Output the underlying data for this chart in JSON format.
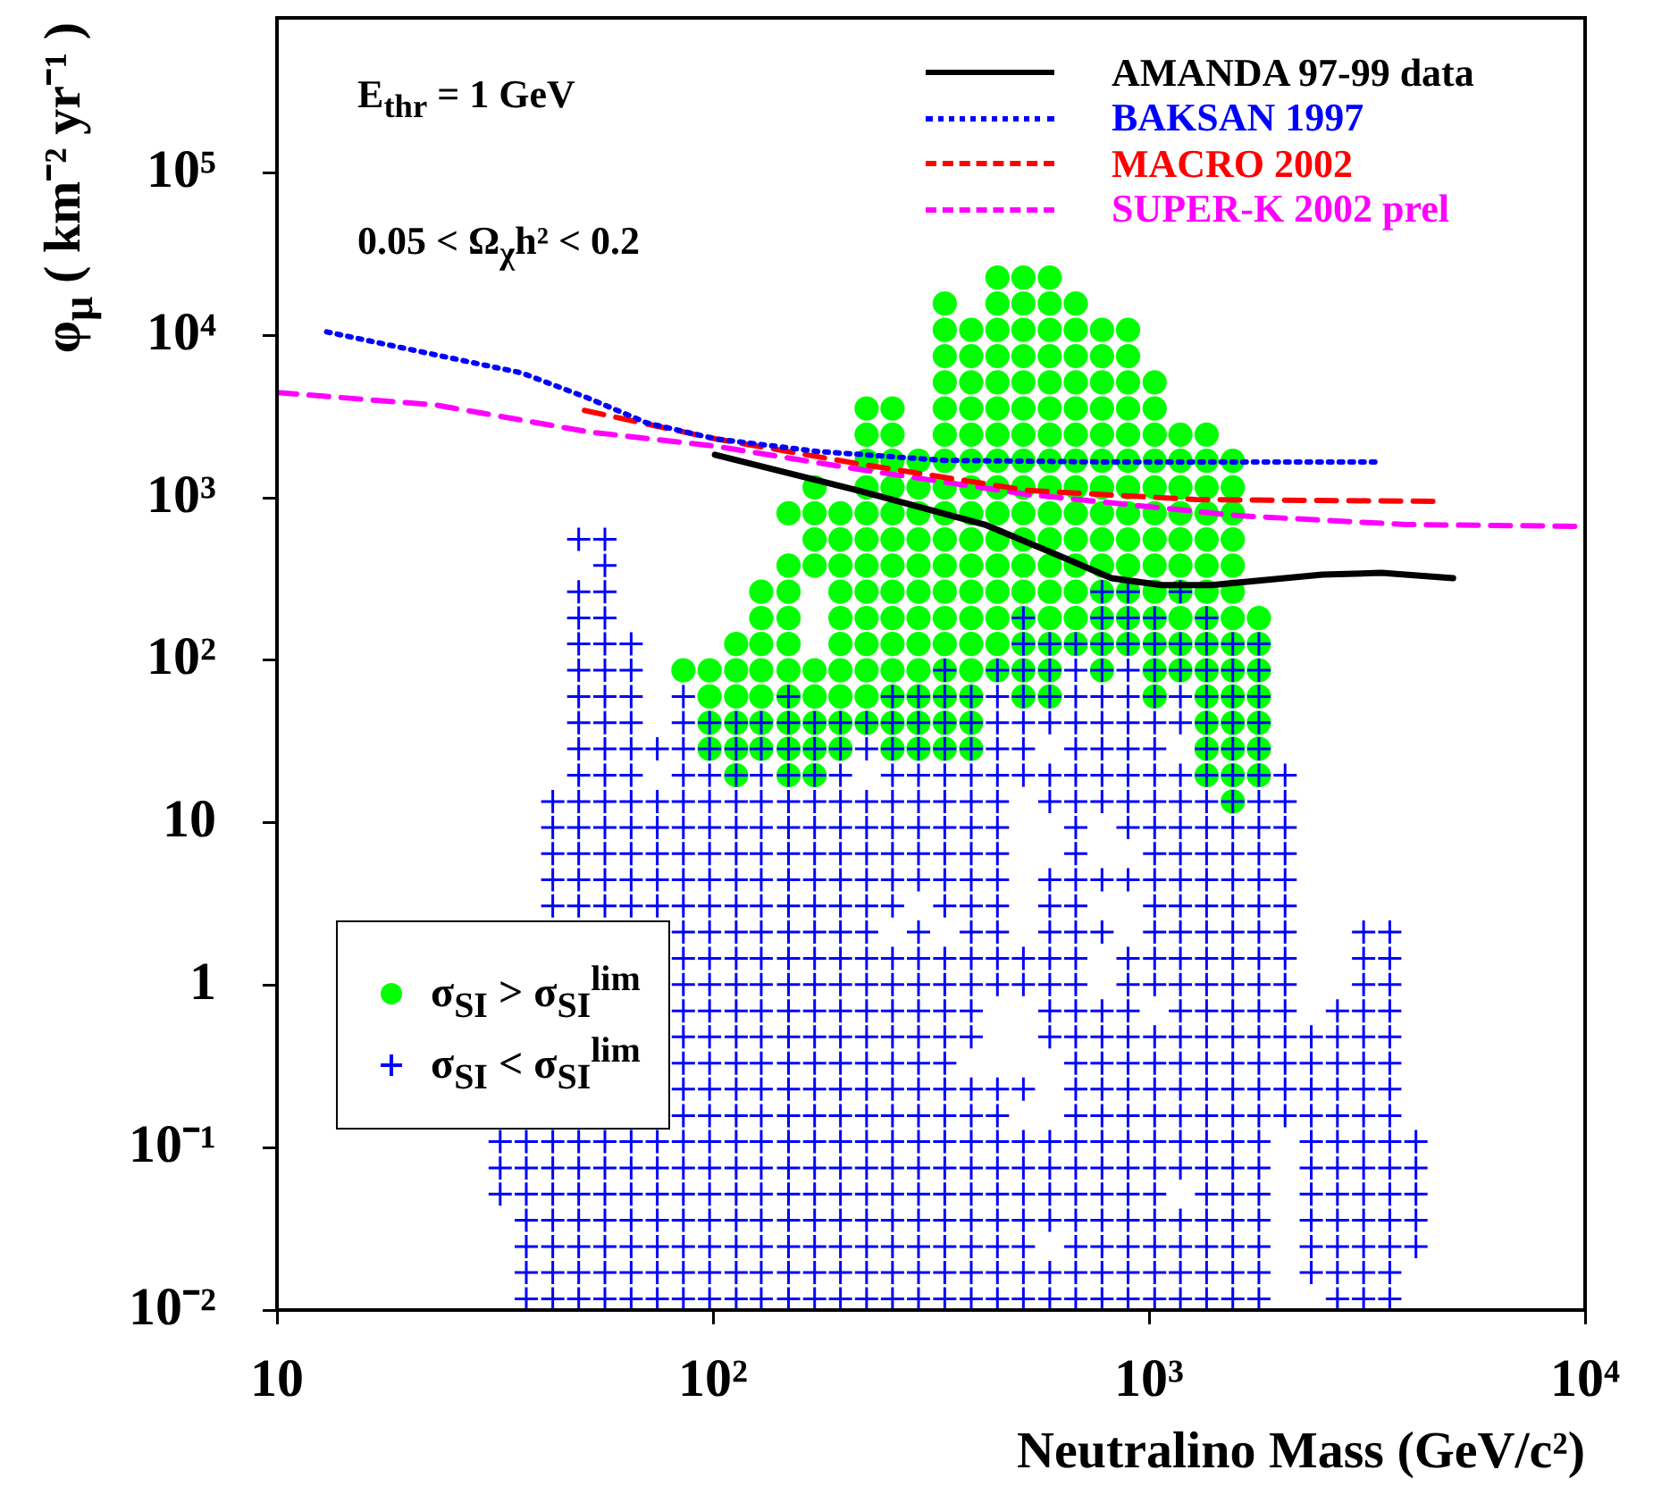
{
  "chart_data": {
    "type": "scatter",
    "xlabel": "Neutralino Mass (GeV/c²)",
    "ylabel": "φ$_{μ}$ ( km⁻² yr⁻¹ )",
    "annotations": [
      "E$_{thr}$ = 1 GeV",
      "0.05 < Ω$_{χ}$h² < 0.2"
    ],
    "log": "xy",
    "legend": "top right",
    "xlim": [
      10,
      10000
    ],
    "xticks": [
      10,
      {
        "value": 100,
        "label": "10²"
      },
      {
        "value": 1000,
        "label": "10³"
      },
      {
        "value": 10000,
        "label": "10⁴"
      }
    ],
    "ylim": [
      0.01,
      900000
    ],
    "yticks": [
      {
        "value": 0.01,
        "label": "10⁻²"
      },
      {
        "value": 0.1,
        "label": "10⁻¹"
      },
      1,
      10,
      {
        "value": 100,
        "label": "10²"
      },
      {
        "value": 1000,
        "label": "10³"
      },
      {
        "value": 10000,
        "label": "10⁴"
      },
      {
        "value": 100000,
        "label": "10⁵"
      }
    ],
    "series": [
      {
        "name": "AMANDA 97-99 data",
        "type": "line",
        "color": "#000000",
        "marker": "none",
        "line_style": "solid",
        "x": [
          101,
          215,
          420,
          630,
          820,
          1070,
          1390,
          2500,
          3410,
          4980
        ],
        "values": [
          1840,
          1110,
          684,
          434,
          320,
          290,
          290,
          337,
          345,
          320
        ]
      },
      {
        "name": "BAKSAN 1997",
        "type": "line",
        "color": "#0000ff",
        "marker": "none",
        "line_style": "dotted",
        "x": [
          13.0,
          23.2,
          36.4,
          51.6,
          70.5,
          101,
          173,
          338,
          820,
          3410
        ],
        "values": [
          10500,
          7570,
          5870,
          4120,
          2890,
          2310,
          1930,
          1700,
          1660,
          1660
        ]
      },
      {
        "name": "MACRO 2002",
        "type": "line",
        "color": "#ff0000",
        "marker": "none",
        "line_style": "dashed",
        "x": [
          50.7,
          101,
          215,
          526,
          1280,
          4740
        ],
        "values": [
          3450,
          2310,
          1620,
          1110,
          975,
          951
        ]
      },
      {
        "name": "SUPER-K 2002 prel",
        "type": "line",
        "color": "#ff00ff",
        "marker": "none",
        "line_style": "dashed",
        "x": [
          10,
          23.2,
          51.6,
          101,
          215,
          526,
          1600,
          3890,
          10000
        ],
        "values": [
          4450,
          3720,
          2550,
          2080,
          1500,
          1050,
          776,
          684,
          667
        ]
      },
      {
        "name": "σ$_{SI}$ > σ$_{SI}$$^{lim}$",
        "type": "scatter",
        "color": "#00ff00",
        "marker": "circle",
        "x": [
          449,
          515,
          592,
          340,
          449,
          515,
          592,
          679,
          340,
          391,
          449,
          515,
          592,
          679,
          780,
          895,
          340,
          391,
          449,
          515,
          592,
          679,
          780,
          895,
          340,
          391,
          449,
          515,
          592,
          679,
          780,
          895,
          1030,
          225,
          258,
          340,
          391,
          449,
          515,
          592,
          679,
          780,
          895,
          1030,
          225,
          258,
          340,
          391,
          449,
          515,
          592,
          679,
          780,
          895,
          1030,
          1180,
          1355,
          225,
          258,
          296,
          340,
          391,
          449,
          515,
          592,
          679,
          780,
          895,
          1030,
          1180,
          1355,
          1556,
          171,
          225,
          258,
          296,
          340,
          391,
          449,
          515,
          592,
          679,
          780,
          895,
          1030,
          1180,
          1355,
          1556,
          149,
          171,
          196,
          225,
          258,
          296,
          340,
          391,
          449,
          515,
          592,
          679,
          780,
          895,
          1030,
          1180,
          1355,
          1556,
          171,
          196,
          225,
          258,
          296,
          340,
          391,
          449,
          515,
          592,
          679,
          780,
          895,
          1030,
          1180,
          1355,
          1556,
          149,
          171,
          196,
          225,
          258,
          296,
          340,
          391,
          449,
          515,
          592,
          679,
          780,
          895,
          1030,
          1180,
          1355,
          1556,
          129,
          149,
          196,
          225,
          258,
          296,
          340,
          391,
          449,
          515,
          592,
          679,
          780,
          895,
          1030,
          1180,
          1355,
          1556,
          129,
          149,
          196,
          225,
          258,
          296,
          340,
          391,
          449,
          515,
          592,
          679,
          780,
          895,
          1030,
          1180,
          1355,
          1556,
          1786,
          113,
          129,
          149,
          196,
          225,
          258,
          296,
          340,
          391,
          449,
          515,
          592,
          679,
          780,
          895,
          1030,
          1180,
          1355,
          1556,
          1786,
          85.5,
          98.2,
          113,
          129,
          149,
          171,
          196,
          225,
          258,
          296,
          340,
          391,
          449,
          515,
          592,
          780,
          1030,
          1180,
          1355,
          1556,
          1786,
          98.2,
          113,
          129,
          149,
          171,
          196,
          225,
          258,
          296,
          340,
          391,
          515,
          592,
          1030,
          1355,
          1556,
          1786,
          98.2,
          113,
          129,
          149,
          171,
          196,
          225,
          258,
          296,
          340,
          391,
          1355,
          1556,
          1786,
          98.2,
          113,
          129,
          149,
          171,
          196,
          258,
          296,
          340,
          391,
          1355,
          1556,
          1786,
          113,
          149,
          171,
          1355,
          1556,
          1786,
          1556
        ],
        "values": [
          22700,
          22700,
          22700,
          15700,
          15700,
          15700,
          15700,
          15700,
          10800,
          10800,
          10800,
          10800,
          10800,
          10800,
          10800,
          10800,
          7450,
          7450,
          7450,
          7450,
          7450,
          7450,
          7450,
          7450,
          5140,
          5140,
          5140,
          5140,
          5140,
          5140,
          5140,
          5140,
          5140,
          3550,
          3550,
          3550,
          3550,
          3550,
          3550,
          3550,
          3550,
          3550,
          3550,
          3550,
          2450,
          2450,
          2450,
          2450,
          2450,
          2450,
          2450,
          2450,
          2450,
          2450,
          2450,
          2450,
          2450,
          1690,
          1690,
          1690,
          1690,
          1690,
          1690,
          1690,
          1690,
          1690,
          1690,
          1690,
          1690,
          1690,
          1690,
          1690,
          1160,
          1160,
          1160,
          1160,
          1160,
          1160,
          1160,
          1160,
          1160,
          1160,
          1160,
          1160,
          1160,
          1160,
          1160,
          1160,
          804,
          804,
          804,
          804,
          804,
          804,
          804,
          804,
          804,
          804,
          804,
          804,
          804,
          804,
          804,
          804,
          804,
          804,
          555,
          555,
          555,
          555,
          555,
          555,
          555,
          555,
          555,
          555,
          555,
          555,
          555,
          555,
          555,
          555,
          555,
          383,
          383,
          383,
          383,
          383,
          383,
          383,
          383,
          383,
          383,
          383,
          383,
          383,
          383,
          383,
          383,
          383,
          383,
          264,
          264,
          264,
          264,
          264,
          264,
          264,
          264,
          264,
          264,
          264,
          264,
          264,
          264,
          264,
          264,
          264,
          264,
          182,
          182,
          182,
          182,
          182,
          182,
          182,
          182,
          182,
          182,
          182,
          182,
          182,
          182,
          182,
          182,
          182,
          182,
          182,
          126,
          126,
          126,
          126,
          126,
          126,
          126,
          126,
          126,
          126,
          126,
          126,
          126,
          126,
          126,
          126,
          126,
          126,
          126,
          126,
          86.7,
          86.7,
          86.7,
          86.7,
          86.7,
          86.7,
          86.7,
          86.7,
          86.7,
          86.7,
          86.7,
          86.7,
          86.7,
          86.7,
          86.7,
          86.7,
          86.7,
          86.7,
          86.7,
          86.7,
          86.7,
          59.8,
          59.8,
          59.8,
          59.8,
          59.8,
          59.8,
          59.8,
          59.8,
          59.8,
          59.8,
          59.8,
          59.8,
          59.8,
          59.8,
          59.8,
          59.8,
          59.8,
          41.2,
          41.2,
          41.2,
          41.2,
          41.2,
          41.2,
          41.2,
          41.2,
          41.2,
          41.2,
          41.2,
          41.2,
          41.2,
          41.2,
          28.5,
          28.5,
          28.5,
          28.5,
          28.5,
          28.5,
          28.5,
          28.5,
          28.5,
          28.5,
          28.5,
          28.5,
          28.5,
          19.6,
          19.6,
          19.6,
          19.6,
          19.6,
          19.6,
          13.5
        ]
      },
      {
        "name": "σ$_{SI}$ < σ$_{SI}$$^{lim}$",
        "type": "scatter",
        "color": "#0000ff",
        "marker": "cross",
        "x": [
          37.3,
          42.9,
          49.2,
          56.5,
          64.9,
          74.5,
          85.5,
          98.2,
          113,
          129,
          149,
          171,
          196,
          225,
          258,
          296,
          340,
          391,
          449,
          515,
          592,
          679,
          780,
          895,
          1030,
          1180,
          1355,
          1556,
          1786,
          2704,
          3105,
          3565,
          37.3,
          42.9,
          49.2,
          56.5,
          64.9,
          74.5,
          85.5,
          98.2,
          113,
          129,
          149,
          171,
          196,
          225,
          258,
          296,
          340,
          391,
          449,
          515,
          592,
          679,
          780,
          895,
          1030,
          1180,
          1355,
          1556,
          1786,
          2355,
          2704,
          3105,
          3565,
          37.3,
          42.9,
          49.2,
          56.5,
          64.9,
          74.5,
          85.5,
          98.2,
          113,
          129,
          149,
          171,
          196,
          225,
          258,
          296,
          340,
          391,
          449,
          515,
          679,
          780,
          895,
          1030,
          1180,
          1355,
          1556,
          1786,
          2355,
          2704,
          3105,
          3565,
          4093,
          37.3,
          42.9,
          49.2,
          56.5,
          64.9,
          74.5,
          85.5,
          98.2,
          113,
          129,
          149,
          171,
          196,
          225,
          258,
          296,
          340,
          391,
          449,
          515,
          592,
          679,
          780,
          895,
          1030,
          1180,
          1355,
          1556,
          1786,
          2355,
          2704,
          3105,
          3565,
          4093,
          32.5,
          37.3,
          42.9,
          49.2,
          56.5,
          64.9,
          74.5,
          85.5,
          98.2,
          113,
          129,
          149,
          171,
          196,
          225,
          258,
          296,
          340,
          391,
          449,
          515,
          592,
          679,
          780,
          895,
          1030,
          1355,
          1556,
          1786,
          2355,
          2704,
          3105,
          3565,
          4093,
          32.5,
          37.3,
          42.9,
          49.2,
          56.5,
          64.9,
          74.5,
          85.5,
          98.2,
          113,
          129,
          149,
          171,
          196,
          225,
          258,
          296,
          340,
          391,
          449,
          515,
          592,
          679,
          780,
          895,
          1030,
          1180,
          1355,
          1556,
          1786,
          2355,
          2704,
          3105,
          3565,
          4093,
          32.5,
          37.3,
          42.9,
          49.2,
          56.5,
          64.9,
          74.5,
          85.5,
          98.2,
          113,
          129,
          149,
          171,
          196,
          225,
          258,
          296,
          340,
          391,
          449,
          515,
          592,
          679,
          780,
          895,
          1030,
          1180,
          1355,
          1556,
          1786,
          2355,
          2704,
          3105,
          3565,
          4093,
          85.5,
          98.2,
          113,
          129,
          149,
          171,
          196,
          225,
          258,
          296,
          340,
          391,
          449,
          679,
          780,
          895,
          1030,
          1180,
          1355,
          1556,
          1786,
          2051,
          2355,
          2704,
          3105,
          3565,
          85.5,
          98.2,
          113,
          129,
          149,
          171,
          196,
          225,
          258,
          296,
          340,
          391,
          449,
          515,
          679,
          780,
          895,
          1030,
          1180,
          1355,
          1556,
          1786,
          2051,
          2355,
          2704,
          3105,
          3565,
          85.5,
          98.2,
          113,
          129,
          149,
          171,
          196,
          225,
          258,
          296,
          340,
          679,
          780,
          895,
          1030,
          1180,
          1355,
          1556,
          1786,
          2051,
          2355,
          2704,
          3105,
          3565,
          85.5,
          98.2,
          113,
          129,
          149,
          171,
          196,
          225,
          258,
          296,
          340,
          391,
          592,
          679,
          780,
          895,
          1030,
          1180,
          1355,
          1556,
          1786,
          2051,
          2355,
          2704,
          3105,
          3565,
          85.5,
          98.2,
          113,
          129,
          149,
          171,
          196,
          225,
          258,
          296,
          340,
          391,
          592,
          679,
          780,
          895,
          1180,
          1355,
          1556,
          1786,
          2051,
          2704,
          3105,
          3565,
          85.5,
          98.2,
          113,
          129,
          149,
          171,
          196,
          225,
          258,
          296,
          340,
          391,
          449,
          515,
          592,
          679,
          895,
          1030,
          1180,
          1355,
          1556,
          1786,
          2051,
          3105,
          3565,
          85.5,
          98.2,
          113,
          129,
          149,
          171,
          196,
          225,
          258,
          296,
          340,
          391,
          449,
          515,
          592,
          679,
          895,
          1030,
          1180,
          1355,
          1556,
          1786,
          2051,
          3105,
          3565,
          85.5,
          98.2,
          113,
          129,
          149,
          171,
          196,
          225,
          296,
          391,
          449,
          592,
          679,
          780,
          1030,
          1180,
          1355,
          1556,
          1786,
          2051,
          3105,
          3565,
          42.9,
          49.2,
          56.5,
          64.9,
          74.5,
          85.5,
          98.2,
          113,
          129,
          149,
          171,
          196,
          225,
          258,
          340,
          391,
          449,
          592,
          679,
          1030,
          1180,
          1355,
          1556,
          1786,
          2051,
          42.9,
          49.2,
          56.5,
          64.9,
          74.5,
          85.5,
          98.2,
          113,
          129,
          149,
          171,
          196,
          225,
          258,
          296,
          340,
          391,
          449,
          592,
          679,
          780,
          895,
          1030,
          1180,
          1355,
          1556,
          1786,
          2051,
          42.9,
          49.2,
          56.5,
          64.9,
          74.5,
          85.5,
          98.2,
          113,
          129,
          149,
          171,
          196,
          225,
          258,
          296,
          340,
          391,
          449,
          679,
          1030,
          1180,
          1355,
          1556,
          1786,
          2051,
          42.9,
          49.2,
          56.5,
          64.9,
          74.5,
          85.5,
          98.2,
          113,
          129,
          149,
          171,
          196,
          225,
          258,
          296,
          340,
          391,
          449,
          679,
          895,
          1030,
          1180,
          1355,
          1556,
          1786,
          2051,
          42.9,
          49.2,
          56.5,
          64.9,
          74.5,
          85.5,
          98.2,
          113,
          129,
          149,
          171,
          196,
          225,
          258,
          296,
          340,
          391,
          449,
          592,
          679,
          780,
          895,
          1030,
          1180,
          1355,
          1556,
          1786,
          2051,
          49.2,
          56.5,
          64.9,
          85.5,
          98.2,
          113,
          129,
          149,
          171,
          196,
          258,
          296,
          340,
          391,
          449,
          515,
          592,
          679,
          780,
          895,
          1030,
          1180,
          1355,
          1556,
          1786,
          2051,
          49.2,
          56.5,
          64.9,
          74.5,
          85.5,
          98.2,
          113,
          129,
          149,
          171,
          196,
          225,
          258,
          296,
          340,
          391,
          449,
          515,
          679,
          780,
          895,
          1030,
          1355,
          1556,
          1786,
          49.2,
          56.5,
          64.9,
          85.5,
          98.2,
          113,
          129,
          149,
          171,
          196,
          225,
          258,
          296,
          340,
          391,
          449,
          515,
          592,
          679,
          780,
          895,
          1030,
          1180,
          1355,
          1556,
          1786,
          49.2,
          56.5,
          64.9,
          85.5,
          149,
          258,
          296,
          340,
          391,
          449,
          515,
          592,
          679,
          780,
          895,
          1030,
          1180,
          1355,
          1556,
          1786,
          49.2,
          56.5,
          64.9,
          340,
          449,
          515,
          592,
          679,
          780,
          895,
          1030,
          1180,
          1355,
          1556,
          1786,
          49.2,
          56.5,
          64.9,
          515,
          592,
          679,
          780,
          895,
          1030,
          1180,
          1355,
          1556,
          1786,
          49.2,
          56.5,
          515,
          780,
          895,
          1030,
          1355,
          49.2,
          56.5,
          780,
          895,
          1180,
          56.5,
          49.2,
          56.5
        ],
        "values": [
          0.0117,
          0.0117,
          0.0117,
          0.0117,
          0.0117,
          0.0117,
          0.0117,
          0.0117,
          0.0117,
          0.0117,
          0.0117,
          0.0117,
          0.0117,
          0.0117,
          0.0117,
          0.0117,
          0.0117,
          0.0117,
          0.0117,
          0.0117,
          0.0117,
          0.0117,
          0.0117,
          0.0117,
          0.0117,
          0.0117,
          0.0117,
          0.0117,
          0.0117,
          0.0117,
          0.0117,
          0.0117,
          0.017,
          0.017,
          0.017,
          0.017,
          0.017,
          0.017,
          0.017,
          0.017,
          0.017,
          0.017,
          0.017,
          0.017,
          0.017,
          0.017,
          0.017,
          0.017,
          0.017,
          0.017,
          0.017,
          0.017,
          0.017,
          0.017,
          0.017,
          0.017,
          0.017,
          0.017,
          0.017,
          0.017,
          0.017,
          0.017,
          0.017,
          0.017,
          0.017,
          0.0246,
          0.0246,
          0.0246,
          0.0246,
          0.0246,
          0.0246,
          0.0246,
          0.0246,
          0.0246,
          0.0246,
          0.0246,
          0.0246,
          0.0246,
          0.0246,
          0.0246,
          0.0246,
          0.0246,
          0.0246,
          0.0246,
          0.0246,
          0.0246,
          0.0246,
          0.0246,
          0.0246,
          0.0246,
          0.0246,
          0.0246,
          0.0246,
          0.0246,
          0.0246,
          0.0246,
          0.0246,
          0.0246,
          0.0357,
          0.0357,
          0.0357,
          0.0357,
          0.0357,
          0.0357,
          0.0357,
          0.0357,
          0.0357,
          0.0357,
          0.0357,
          0.0357,
          0.0357,
          0.0357,
          0.0357,
          0.0357,
          0.0357,
          0.0357,
          0.0357,
          0.0357,
          0.0357,
          0.0357,
          0.0357,
          0.0357,
          0.0357,
          0.0357,
          0.0357,
          0.0357,
          0.0357,
          0.0357,
          0.0357,
          0.0357,
          0.0357,
          0.0357,
          0.0518,
          0.0518,
          0.0518,
          0.0518,
          0.0518,
          0.0518,
          0.0518,
          0.0518,
          0.0518,
          0.0518,
          0.0518,
          0.0518,
          0.0518,
          0.0518,
          0.0518,
          0.0518,
          0.0518,
          0.0518,
          0.0518,
          0.0518,
          0.0518,
          0.0518,
          0.0518,
          0.0518,
          0.0518,
          0.0518,
          0.0518,
          0.0518,
          0.0518,
          0.0518,
          0.0518,
          0.0518,
          0.0518,
          0.0518,
          0.075,
          0.075,
          0.075,
          0.075,
          0.075,
          0.075,
          0.075,
          0.075,
          0.075,
          0.075,
          0.075,
          0.075,
          0.075,
          0.075,
          0.075,
          0.075,
          0.075,
          0.075,
          0.075,
          0.075,
          0.075,
          0.075,
          0.075,
          0.075,
          0.075,
          0.075,
          0.075,
          0.075,
          0.075,
          0.075,
          0.075,
          0.075,
          0.075,
          0.075,
          0.075,
          0.109,
          0.109,
          0.109,
          0.109,
          0.109,
          0.109,
          0.109,
          0.109,
          0.109,
          0.109,
          0.109,
          0.109,
          0.109,
          0.109,
          0.109,
          0.109,
          0.109,
          0.109,
          0.109,
          0.109,
          0.109,
          0.109,
          0.109,
          0.109,
          0.109,
          0.109,
          0.109,
          0.109,
          0.109,
          0.109,
          0.109,
          0.109,
          0.109,
          0.109,
          0.109,
          0.157,
          0.157,
          0.157,
          0.157,
          0.157,
          0.157,
          0.157,
          0.157,
          0.157,
          0.157,
          0.157,
          0.157,
          0.157,
          0.157,
          0.157,
          0.157,
          0.157,
          0.157,
          0.157,
          0.157,
          0.157,
          0.157,
          0.157,
          0.157,
          0.157,
          0.157,
          0.229,
          0.229,
          0.229,
          0.229,
          0.229,
          0.229,
          0.229,
          0.229,
          0.229,
          0.229,
          0.229,
          0.229,
          0.229,
          0.229,
          0.229,
          0.229,
          0.229,
          0.229,
          0.229,
          0.229,
          0.229,
          0.229,
          0.229,
          0.229,
          0.229,
          0.229,
          0.229,
          0.331,
          0.331,
          0.331,
          0.331,
          0.331,
          0.331,
          0.331,
          0.331,
          0.331,
          0.331,
          0.331,
          0.331,
          0.331,
          0.331,
          0.331,
          0.331,
          0.331,
          0.331,
          0.331,
          0.331,
          0.331,
          0.331,
          0.331,
          0.331,
          0.48,
          0.48,
          0.48,
          0.48,
          0.48,
          0.48,
          0.48,
          0.48,
          0.48,
          0.48,
          0.48,
          0.48,
          0.48,
          0.48,
          0.48,
          0.48,
          0.48,
          0.48,
          0.48,
          0.48,
          0.48,
          0.48,
          0.48,
          0.48,
          0.48,
          0.48,
          0.695,
          0.695,
          0.695,
          0.695,
          0.695,
          0.695,
          0.695,
          0.695,
          0.695,
          0.695,
          0.695,
          0.695,
          0.695,
          0.695,
          0.695,
          0.695,
          0.695,
          0.695,
          0.695,
          0.695,
          0.695,
          0.695,
          0.695,
          0.695,
          1.01,
          1.01,
          1.01,
          1.01,
          1.01,
          1.01,
          1.01,
          1.01,
          1.01,
          1.01,
          1.01,
          1.01,
          1.01,
          1.01,
          1.01,
          1.01,
          1.01,
          1.01,
          1.01,
          1.01,
          1.01,
          1.01,
          1.01,
          1.01,
          1.01,
          1.46,
          1.46,
          1.46,
          1.46,
          1.46,
          1.46,
          1.46,
          1.46,
          1.46,
          1.46,
          1.46,
          1.46,
          1.46,
          1.46,
          1.46,
          1.46,
          1.46,
          1.46,
          1.46,
          1.46,
          1.46,
          1.46,
          1.46,
          1.46,
          1.46,
          2.12,
          2.12,
          2.12,
          2.12,
          2.12,
          2.12,
          2.12,
          2.12,
          2.12,
          2.12,
          2.12,
          2.12,
          2.12,
          2.12,
          2.12,
          2.12,
          2.12,
          2.12,
          2.12,
          2.12,
          2.12,
          2.12,
          3.07,
          3.07,
          3.07,
          3.07,
          3.07,
          3.07,
          3.07,
          3.07,
          3.07,
          3.07,
          3.07,
          3.07,
          3.07,
          3.07,
          3.07,
          3.07,
          3.07,
          3.07,
          3.07,
          3.07,
          3.07,
          3.07,
          3.07,
          3.07,
          3.07,
          4.45,
          4.45,
          4.45,
          4.45,
          4.45,
          4.45,
          4.45,
          4.45,
          4.45,
          4.45,
          4.45,
          4.45,
          4.45,
          4.45,
          4.45,
          4.45,
          4.45,
          4.45,
          4.45,
          4.45,
          4.45,
          4.45,
          4.45,
          4.45,
          4.45,
          4.45,
          4.45,
          4.45,
          6.45,
          6.45,
          6.45,
          6.45,
          6.45,
          6.45,
          6.45,
          6.45,
          6.45,
          6.45,
          6.45,
          6.45,
          6.45,
          6.45,
          6.45,
          6.45,
          6.45,
          6.45,
          6.45,
          6.45,
          6.45,
          6.45,
          6.45,
          6.45,
          6.45,
          9.35,
          9.35,
          9.35,
          9.35,
          9.35,
          9.35,
          9.35,
          9.35,
          9.35,
          9.35,
          9.35,
          9.35,
          9.35,
          9.35,
          9.35,
          9.35,
          9.35,
          9.35,
          9.35,
          9.35,
          9.35,
          9.35,
          9.35,
          9.35,
          9.35,
          9.35,
          13.5,
          13.5,
          13.5,
          13.5,
          13.5,
          13.5,
          13.5,
          13.5,
          13.5,
          13.5,
          13.5,
          13.5,
          13.5,
          13.5,
          13.5,
          13.5,
          13.5,
          13.5,
          13.5,
          13.5,
          13.5,
          13.5,
          13.5,
          13.5,
          13.5,
          13.5,
          13.5,
          13.5,
          19.6,
          19.6,
          19.6,
          19.6,
          19.6,
          19.6,
          19.6,
          19.6,
          19.6,
          19.6,
          19.6,
          19.6,
          19.6,
          19.6,
          19.6,
          19.6,
          19.6,
          19.6,
          19.6,
          19.6,
          19.6,
          19.6,
          19.6,
          19.6,
          19.6,
          19.6,
          28.5,
          28.5,
          28.5,
          28.5,
          28.5,
          28.5,
          28.5,
          28.5,
          28.5,
          28.5,
          28.5,
          28.5,
          28.5,
          28.5,
          28.5,
          28.5,
          28.5,
          28.5,
          28.5,
          28.5,
          28.5,
          28.5,
          28.5,
          28.5,
          28.5,
          41.2,
          41.2,
          41.2,
          41.2,
          41.2,
          41.2,
          41.2,
          41.2,
          41.2,
          41.2,
          41.2,
          41.2,
          41.2,
          41.2,
          41.2,
          41.2,
          41.2,
          41.2,
          41.2,
          41.2,
          41.2,
          41.2,
          41.2,
          41.2,
          41.2,
          41.2,
          59.8,
          59.8,
          59.8,
          59.8,
          59.8,
          59.8,
          59.8,
          59.8,
          59.8,
          59.8,
          59.8,
          59.8,
          59.8,
          59.8,
          59.8,
          59.8,
          59.8,
          59.8,
          59.8,
          59.8,
          86.7,
          86.7,
          86.7,
          86.7,
          86.7,
          86.7,
          86.7,
          86.7,
          86.7,
          86.7,
          86.7,
          86.7,
          86.7,
          86.7,
          86.7,
          126,
          126,
          126,
          126,
          126,
          126,
          126,
          126,
          126,
          126,
          126,
          126,
          126,
          182,
          182,
          182,
          182,
          182,
          182,
          182,
          264,
          264,
          264,
          264,
          264,
          383,
          555,
          555
        ]
      }
    ]
  }
}
